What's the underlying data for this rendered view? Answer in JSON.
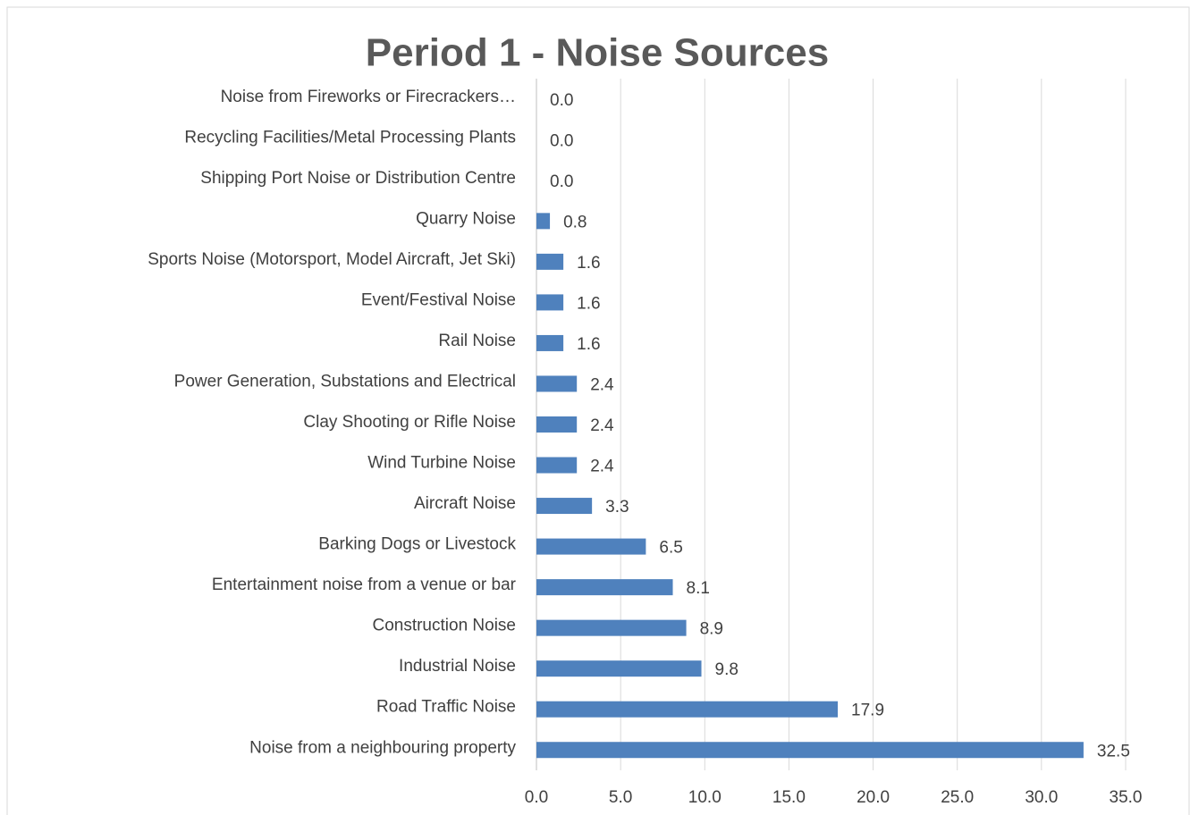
{
  "chart_data": {
    "type": "hbar",
    "title": "Period 1 - Noise Sources",
    "categories": [
      "Noise from Fireworks or Firecrackers…",
      "Recycling Facilities/Metal Processing Plants",
      "Shipping Port Noise or Distribution Centre",
      "Quarry Noise",
      "Sports Noise (Motorsport, Model Aircraft, Jet Ski)",
      "Event/Festival Noise",
      "Rail Noise",
      "Power Generation, Substations and Electrical",
      "Clay Shooting or Rifle Noise",
      "Wind Turbine Noise",
      "Aircraft Noise",
      "Barking Dogs or Livestock",
      "Entertainment noise from a venue or bar",
      "Construction Noise",
      "Industrial Noise",
      "Road Traffic Noise",
      "Noise from a neighbouring property"
    ],
    "values": [
      0,
      0,
      0,
      0.8,
      1.6,
      1.6,
      1.6,
      2.4,
      2.4,
      2.4,
      3.3,
      6.5,
      8.1,
      8.9,
      9.8,
      17.9,
      32.5
    ],
    "value_labels": [
      "0.0",
      "0.0",
      "0.0",
      "0.8",
      "1.6",
      "1.6",
      "1.6",
      "2.4",
      "2.4",
      "2.4",
      "3.3",
      "6.5",
      "8.1",
      "8.9",
      "9.8",
      "17.9",
      "32.5"
    ],
    "color": "#4f81bd",
    "xlim": [
      0,
      35
    ],
    "xticks": [
      {
        "value": 0,
        "label": "0.0"
      },
      {
        "value": 5,
        "label": "5.0"
      },
      {
        "value": 10,
        "label": "10.0"
      },
      {
        "value": 15,
        "label": "15.0"
      },
      {
        "value": 20,
        "label": "20.0"
      },
      {
        "value": 25,
        "label": "25.0"
      },
      {
        "value": 30,
        "label": "30.0"
      },
      {
        "value": 35,
        "label": "35.0"
      }
    ],
    "grid": true
  }
}
